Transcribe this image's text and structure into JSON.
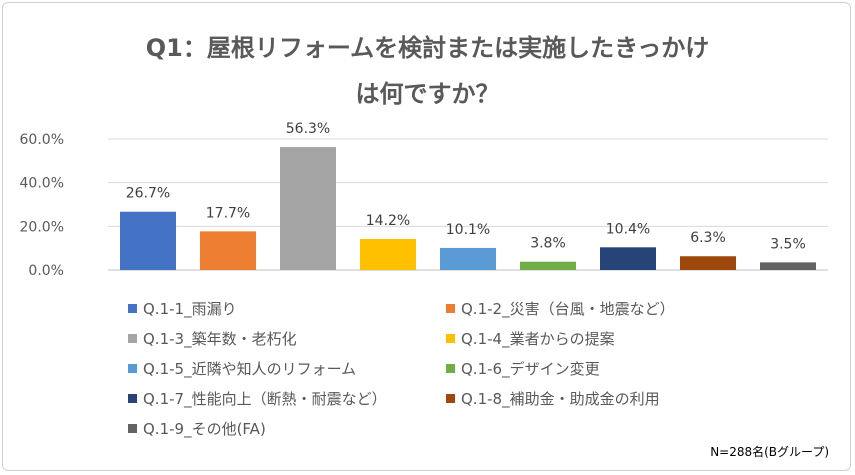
{
  "title": {
    "line1": "Q1：屋根リフォームを検討または実施したきっかけ",
    "line2": "は何ですか？"
  },
  "note": "N=288名(Bグループ)",
  "chart_data": {
    "type": "bar",
    "categories": [
      "Q.1-1_雨漏り",
      "Q.1-2_災害（台風・地震など）",
      "Q.1-3_築年数・老朽化",
      "Q.1-4_業者からの提案",
      "Q.1-5_近隣や知人のリフォーム",
      "Q.1-6_デザイン変更",
      "Q.1-7_性能向上（断熱・耐震など）",
      "Q.1-8_補助金・助成金の利用",
      "Q.1-9_その他(FA)"
    ],
    "values": [
      26.7,
      17.7,
      56.3,
      14.2,
      10.1,
      3.8,
      10.4,
      6.3,
      3.5
    ],
    "value_labels": [
      "26.7%",
      "17.7%",
      "56.3%",
      "14.2%",
      "10.1%",
      "3.8%",
      "10.4%",
      "6.3%",
      "3.5%"
    ],
    "colors": [
      "#4472C4",
      "#ED7D31",
      "#A5A5A5",
      "#FFC000",
      "#5B9BD5",
      "#70AD47",
      "#264478",
      "#9E480E",
      "#636363"
    ],
    "yticks": [
      "0.0%",
      "20.0%",
      "40.0%",
      "60.0%"
    ],
    "ylim": [
      0,
      60
    ],
    "grid": true,
    "legend": "bottom"
  }
}
